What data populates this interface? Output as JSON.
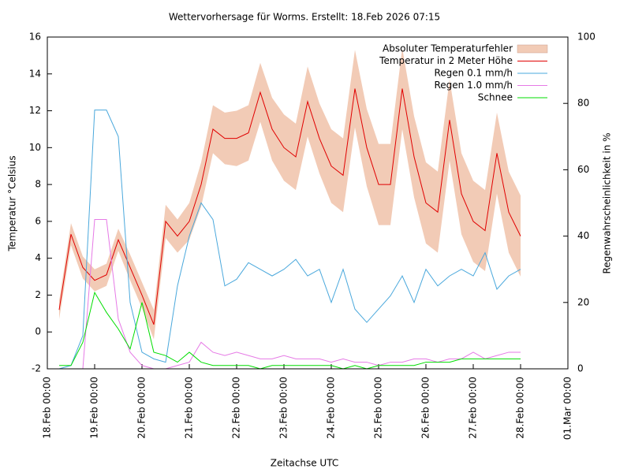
{
  "chart_data": {
    "type": "line",
    "title": "Wettervorhersage für Worms. Erstellt: 18.Feb 2026 07:15",
    "xlabel": "Zeitachse UTC",
    "ylabel": "Temperatur °Celsius",
    "y2label": "Regenwahrscheinlichkeit in %",
    "x": [
      "2026-02-18T06:00",
      "2026-02-18T12:00",
      "2026-02-18T18:00",
      "2026-02-19T00:00",
      "2026-02-19T06:00",
      "2026-02-19T12:00",
      "2026-02-19T18:00",
      "2026-02-20T00:00",
      "2026-02-20T06:00",
      "2026-02-20T12:00",
      "2026-02-20T18:00",
      "2026-02-21T00:00",
      "2026-02-21T06:00",
      "2026-02-21T12:00",
      "2026-02-21T18:00",
      "2026-02-22T00:00",
      "2026-02-22T06:00",
      "2026-02-22T12:00",
      "2026-02-22T18:00",
      "2026-02-23T00:00",
      "2026-02-23T06:00",
      "2026-02-23T12:00",
      "2026-02-23T18:00",
      "2026-02-24T00:00",
      "2026-02-24T06:00",
      "2026-02-24T12:00",
      "2026-02-24T18:00",
      "2026-02-25T00:00",
      "2026-02-25T06:00",
      "2026-02-25T12:00",
      "2026-02-25T18:00",
      "2026-02-26T00:00",
      "2026-02-26T06:00",
      "2026-02-26T12:00",
      "2026-02-26T18:00",
      "2026-02-27T00:00",
      "2026-02-27T06:00",
      "2026-02-27T12:00",
      "2026-02-27T18:00",
      "2026-02-28T00:00"
    ],
    "xlim": [
      "2026-02-18T00:00",
      "2026-03-01T00:00"
    ],
    "xticks": [
      {
        "value": "2026-02-18T00:00",
        "label": "18.Feb 00:00"
      },
      {
        "value": "2026-02-19T00:00",
        "label": "19.Feb 00:00"
      },
      {
        "value": "2026-02-20T00:00",
        "label": "20.Feb 00:00"
      },
      {
        "value": "2026-02-21T00:00",
        "label": "21.Feb 00:00"
      },
      {
        "value": "2026-02-22T00:00",
        "label": "22.Feb 00:00"
      },
      {
        "value": "2026-02-23T00:00",
        "label": "23.Feb 00:00"
      },
      {
        "value": "2026-02-24T00:00",
        "label": "24.Feb 00:00"
      },
      {
        "value": "2026-02-25T00:00",
        "label": "25.Feb 00:00"
      },
      {
        "value": "2026-02-26T00:00",
        "label": "26.Feb 00:00"
      },
      {
        "value": "2026-02-27T00:00",
        "label": "27.Feb 00:00"
      },
      {
        "value": "2026-02-28T00:00",
        "label": "28.Feb 00:00"
      },
      {
        "value": "2026-03-01T00:00",
        "label": "01.Mar 00:00"
      }
    ],
    "ylim": [
      -2,
      16
    ],
    "yticks": [
      -2,
      0,
      2,
      4,
      6,
      8,
      10,
      12,
      14,
      16
    ],
    "y2lim": [
      0,
      100
    ],
    "y2ticks": [
      0,
      20,
      40,
      60,
      80,
      100
    ],
    "series": [
      {
        "name": "Absoluter Temperaturfehler",
        "style": "errorband",
        "of": 1,
        "color": "#f2cbb6",
        "values": [
          0.5,
          0.6,
          0.6,
          0.6,
          0.6,
          0.6,
          0.7,
          0.7,
          0.8,
          0.9,
          0.9,
          1.0,
          1.2,
          1.3,
          1.4,
          1.5,
          1.5,
          1.6,
          1.7,
          1.8,
          1.8,
          1.9,
          1.9,
          2.0,
          2.0,
          2.1,
          2.1,
          2.2,
          2.2,
          2.2,
          2.2,
          2.2,
          2.2,
          2.2,
          2.2,
          2.2,
          2.2,
          2.2,
          2.2,
          2.2
        ]
      },
      {
        "name": "Temperatur in 2 Meter Höhe",
        "color": "#e00000",
        "values": [
          1.2,
          5.3,
          3.5,
          2.8,
          3.1,
          5.0,
          3.5,
          2.0,
          0.4,
          6.0,
          5.2,
          6.0,
          8.0,
          11.0,
          10.5,
          10.5,
          10.8,
          13.0,
          11.0,
          10.0,
          9.5,
          12.5,
          10.5,
          9.0,
          8.5,
          13.2,
          10.0,
          8.0,
          8.0,
          13.2,
          9.5,
          7.0,
          6.5,
          11.5,
          7.5,
          6.0,
          5.5,
          9.7,
          6.5,
          5.2
        ]
      },
      {
        "name": "Regen 0.1 mm/h",
        "axis": "y2",
        "color": "#4aa8dc",
        "values": [
          0,
          1,
          10,
          78,
          78,
          70,
          20,
          5,
          3,
          2,
          25,
          40,
          50,
          45,
          25,
          27,
          32,
          30,
          28,
          30,
          33,
          28,
          30,
          20,
          30,
          18,
          14,
          18,
          22,
          28,
          20,
          30,
          25,
          28,
          30,
          28,
          35,
          24,
          28,
          30
        ]
      },
      {
        "name": "Regen 1.0 mm/h",
        "axis": "y2",
        "color": "#e67ae6",
        "values": [
          0,
          0,
          0,
          45,
          45,
          15,
          5,
          1,
          0,
          0,
          1,
          2,
          8,
          5,
          4,
          5,
          4,
          3,
          3,
          4,
          3,
          3,
          3,
          2,
          3,
          2,
          2,
          1,
          2,
          2,
          3,
          3,
          2,
          3,
          3,
          5,
          3,
          4,
          5,
          5
        ]
      },
      {
        "name": "Schnee",
        "axis": "y2",
        "color": "#00dd00",
        "values": [
          1,
          1,
          8,
          23,
          17,
          12,
          6,
          20,
          5,
          4,
          2,
          5,
          2,
          1,
          1,
          1,
          1,
          0,
          1,
          1,
          1,
          1,
          1,
          1,
          0,
          1,
          0,
          1,
          1,
          1,
          1,
          2,
          2,
          2,
          3,
          3,
          3,
          3,
          3,
          3
        ]
      }
    ]
  }
}
